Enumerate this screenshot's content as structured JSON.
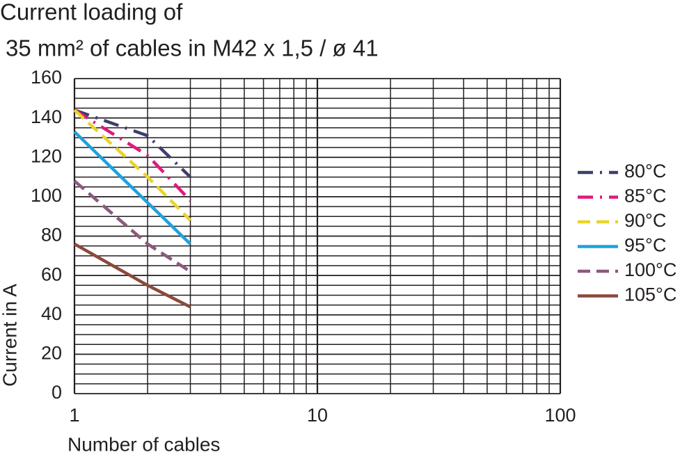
{
  "chart_data": {
    "type": "line",
    "title": [
      "Current loading of",
      "35 mm² of cables in M42 x 1,5 / ø 41"
    ],
    "x_label": "Number of cables",
    "y_label": "Current in A",
    "x": [
      1,
      2,
      3
    ],
    "series": [
      {
        "name": "80°C",
        "color": "#3e3f6e",
        "dash": "dash-dot",
        "values": [
          144,
          131,
          110
        ]
      },
      {
        "name": "85°C",
        "color": "#e0197d",
        "dash": "dash-dot",
        "values": [
          144,
          121,
          98
        ]
      },
      {
        "name": "90°C",
        "color": "#e8d42a",
        "dash": "dashed",
        "values": [
          144,
          110,
          88
        ]
      },
      {
        "name": "95°C",
        "color": "#1ea2dd",
        "dash": "solid",
        "values": [
          133,
          97,
          76
        ]
      },
      {
        "name": "100°C",
        "color": "#8c5a7d",
        "dash": "dashed",
        "values": [
          108,
          76,
          62
        ]
      },
      {
        "name": "105°C",
        "color": "#8b4a3a",
        "dash": "solid",
        "values": [
          76,
          55,
          44
        ]
      }
    ],
    "xscale": "log",
    "xlim": [
      1,
      100
    ],
    "xticks": [
      1,
      10,
      100
    ],
    "minor_xticks": [
      2,
      3,
      4,
      5,
      6,
      7,
      8,
      9,
      20,
      30,
      40,
      50,
      60,
      70,
      80,
      90
    ],
    "ylim": [
      0,
      160
    ],
    "yticks": [
      0,
      20,
      40,
      60,
      80,
      100,
      120,
      140,
      160
    ],
    "minor_yticks": [
      5,
      10,
      15,
      25,
      30,
      35,
      45,
      50,
      55,
      65,
      70,
      75,
      85,
      90,
      95,
      105,
      110,
      115,
      125,
      130,
      135,
      145,
      150,
      155
    ],
    "grid": true,
    "legend": "right"
  }
}
